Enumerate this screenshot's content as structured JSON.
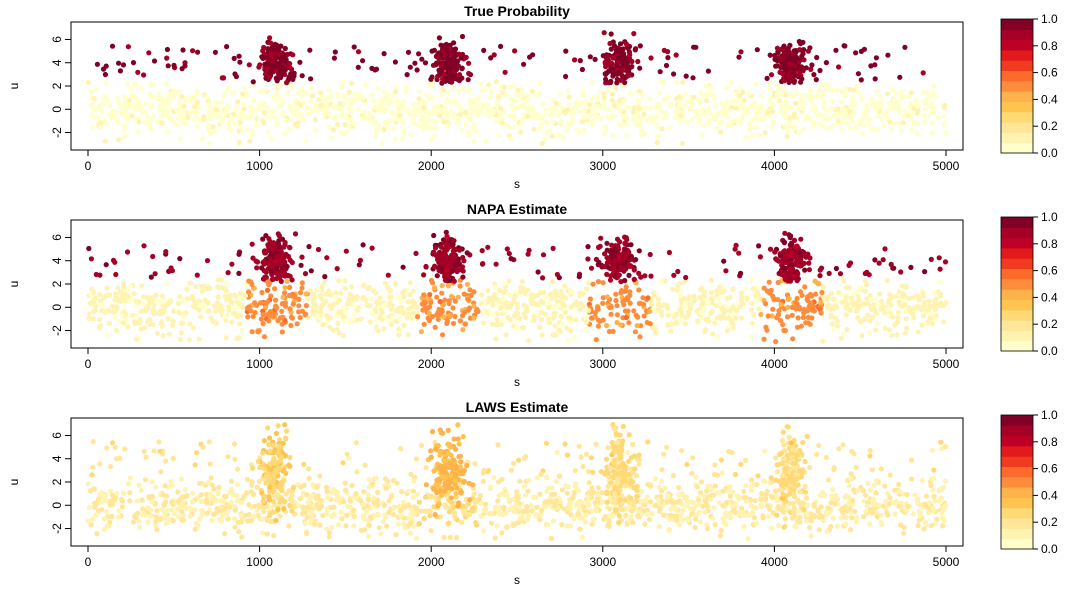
{
  "chart_data": [
    {
      "type": "scatter",
      "title": "True Probability",
      "xlabel": "s",
      "ylabel": "u",
      "xlim": [
        0,
        5000
      ],
      "ylim": [
        -3.5,
        7.5
      ],
      "x_ticks": [
        "0",
        "1000",
        "2000",
        "3000",
        "4000",
        "5000"
      ],
      "y_ticks": [
        "-2",
        "0",
        "2",
        "4",
        "6"
      ],
      "colorbar_ticks": [
        "0.0",
        "0.2",
        "0.4",
        "0.6",
        "0.8",
        "1.0"
      ],
      "color_scale": "YlOrRd",
      "lower_band": {
        "u_range": [
          -2.5,
          2.5
        ],
        "value": 0.05
      },
      "upper_points": {
        "u_range": [
          2.5,
          7
        ],
        "value": 0.95
      },
      "clusters": [
        {
          "s": 1100,
          "u": 4,
          "value": 0.95
        },
        {
          "s": 2100,
          "u": 4,
          "value": 0.95
        },
        {
          "s": 3100,
          "u": 4,
          "value": 0.95
        },
        {
          "s": 4100,
          "u": 4,
          "value": 0.95
        }
      ],
      "grid": false
    },
    {
      "type": "scatter",
      "title": "NAPA Estimate",
      "xlabel": "s",
      "ylabel": "u",
      "xlim": [
        0,
        5000
      ],
      "ylim": [
        -3.5,
        7.5
      ],
      "x_ticks": [
        "0",
        "1000",
        "2000",
        "3000",
        "4000",
        "5000"
      ],
      "y_ticks": [
        "-2",
        "0",
        "2",
        "4",
        "6"
      ],
      "colorbar_ticks": [
        "0.0",
        "0.2",
        "0.4",
        "0.6",
        "0.8",
        "1.0"
      ],
      "color_scale": "YlOrRd",
      "lower_band": {
        "u_range": [
          -2.5,
          2.5
        ],
        "value": 0.1
      },
      "upper_points": {
        "u_range": [
          2.5,
          7
        ],
        "value": 0.9
      },
      "clusters": [
        {
          "s": 1100,
          "u": 4,
          "value": 0.9
        },
        {
          "s": 2100,
          "u": 4,
          "value": 0.9
        },
        {
          "s": 3100,
          "u": 4,
          "value": 0.9
        },
        {
          "s": 4100,
          "u": 4,
          "value": 0.9
        }
      ],
      "grid": false
    },
    {
      "type": "scatter",
      "title": "LAWS Estimate",
      "xlabel": "s",
      "ylabel": "u",
      "xlim": [
        0,
        5000
      ],
      "ylim": [
        -3.5,
        7.5
      ],
      "x_ticks": [
        "0",
        "1000",
        "2000",
        "3000",
        "4000",
        "5000"
      ],
      "y_ticks": [
        "-2",
        "0",
        "2",
        "4",
        "6"
      ],
      "colorbar_ticks": [
        "0.0",
        "0.2",
        "0.4",
        "0.6",
        "0.8",
        "1.0"
      ],
      "color_scale": "YlOrRd",
      "lower_band": {
        "u_range": [
          -2.5,
          2.5
        ],
        "value": 0.15
      },
      "upper_points": {
        "u_range": [
          2.5,
          7
        ],
        "value": 0.2
      },
      "clusters": [
        {
          "s": 1100,
          "u": 3,
          "value": 0.3
        },
        {
          "s": 2100,
          "u": 3,
          "value": 0.4
        },
        {
          "s": 3100,
          "u": 3,
          "value": 0.25
        },
        {
          "s": 4100,
          "u": 3,
          "value": 0.25
        }
      ],
      "grid": false
    }
  ],
  "colors": {
    "palette": [
      "#ffffcc",
      "#fff3b2",
      "#ffe699",
      "#fed976",
      "#fec44f",
      "#feb24c",
      "#fd8d3c",
      "#fc6b2c",
      "#f03b20",
      "#e31a1c",
      "#bd0026",
      "#a50026",
      "#800026"
    ]
  }
}
